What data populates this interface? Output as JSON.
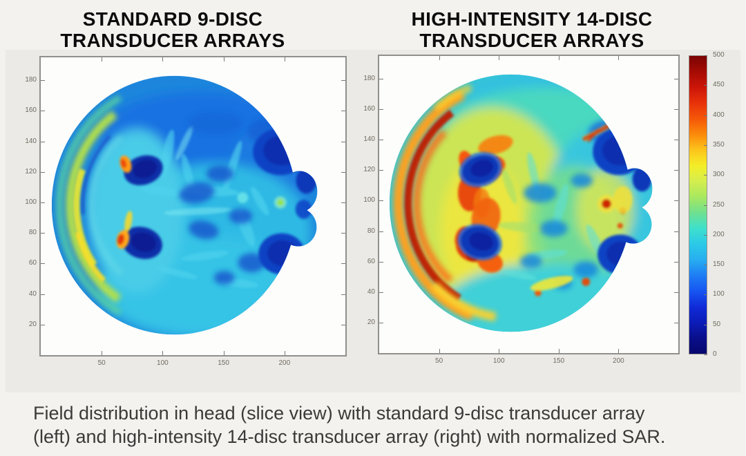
{
  "header": {
    "left_title": [
      "STANDARD 9-DISC",
      "TRANSDUCER ARRAYS"
    ],
    "right_title": [
      "HIGH-INTENSITY 14-DISC",
      "TRANSDUCER ARRAYS"
    ]
  },
  "chart_data": [
    {
      "type": "heatmap",
      "title": "STANDARD 9-DISC TRANSDUCER ARRAYS",
      "x_ticks": [
        50,
        100,
        150,
        200
      ],
      "y_ticks": [
        20,
        40,
        60,
        80,
        100,
        120,
        140,
        160,
        180
      ],
      "xlim": [
        0,
        250
      ],
      "ylim": [
        0,
        195
      ],
      "colormap": "jet",
      "value_range": [
        0,
        500
      ],
      "grid": false,
      "summary": "Axial head slice SAR map, mostly low values (blue/cyan ~50-200); yellow-green skull rim along left edge (~250-300); two small orange-red hotspots (~350-450) at the left edges of the deep-blue ventricle blobs; large deep-blue (~0-50) regions at right (orbits) and center."
    },
    {
      "type": "heatmap",
      "title": "HIGH-INTENSITY 14-DISC TRANSDUCER ARRAYS",
      "x_ticks": [
        50,
        100,
        150,
        200
      ],
      "y_ticks": [
        20,
        40,
        60,
        80,
        100,
        120,
        140,
        160,
        180
      ],
      "xlim": [
        0,
        250
      ],
      "ylim": [
        0,
        195
      ],
      "colormap": "jet",
      "value_range": [
        0,
        500
      ],
      "grid": false,
      "summary": "Same axial slice with elevated SAR: dark-red skull rim on left (~450-500) with orange band, orange-red frontal hotspots (~350-450), yellow-green mid regions (~250-300), cyan posterior half (~150-250), deep-blue ventricles and orbit blobs (~0-50), thin red streak upper right."
    }
  ],
  "colorbar": {
    "min": 0,
    "max": 500,
    "ticks": [
      500,
      450,
      400,
      350,
      300,
      250,
      200,
      150,
      100,
      50,
      0
    ],
    "colormap": "jet",
    "stops": [
      "#7a0403",
      "#a50b04",
      "#cc1509",
      "#e8320a",
      "#f55708",
      "#fb8a0a",
      "#fdc41b",
      "#f4ee27",
      "#d4ee4e",
      "#a8e85f",
      "#6fe08f",
      "#3ee0cc",
      "#2cc9e8",
      "#27aef0",
      "#1f7df4",
      "#1656f2",
      "#102bd8",
      "#0c1cb8",
      "#0a0f8a",
      "#07076e"
    ]
  },
  "caption": {
    "line1": "Field distribution in head (slice view) with standard 9-disc transducer array",
    "line2": "(left) and high-intensity 14-disc transducer array (right) with normalized SAR."
  }
}
